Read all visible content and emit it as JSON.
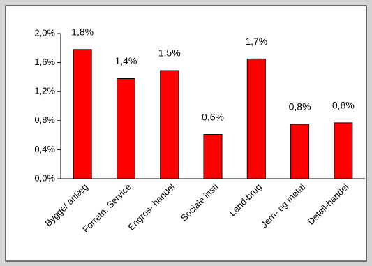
{
  "chart_data": {
    "type": "bar",
    "categories": [
      "Bygge/ anlæg",
      "Forretn. Service",
      "Engros- handel",
      "Sociale insti",
      "Land-brug",
      "Jern- og metal",
      "Detail-handel"
    ],
    "values": [
      1.78,
      1.38,
      1.49,
      0.61,
      1.65,
      0.75,
      0.77
    ],
    "value_labels": [
      "1,8%",
      "1,4%",
      "1,5%",
      "0,6%",
      "1,7%",
      "0,8%",
      "0,8%"
    ],
    "color": "#ff0000",
    "ylim": [
      0,
      2
    ],
    "yticks": [
      {
        "value": 0,
        "label": "0,0%"
      },
      {
        "value": 0.4,
        "label": "0,4%"
      },
      {
        "value": 0.8,
        "label": "0,8%"
      },
      {
        "value": 1.2,
        "label": "1,2%"
      },
      {
        "value": 1.6,
        "label": "1,6%"
      },
      {
        "value": 2,
        "label": "2,0%"
      }
    ],
    "grid": false
  }
}
